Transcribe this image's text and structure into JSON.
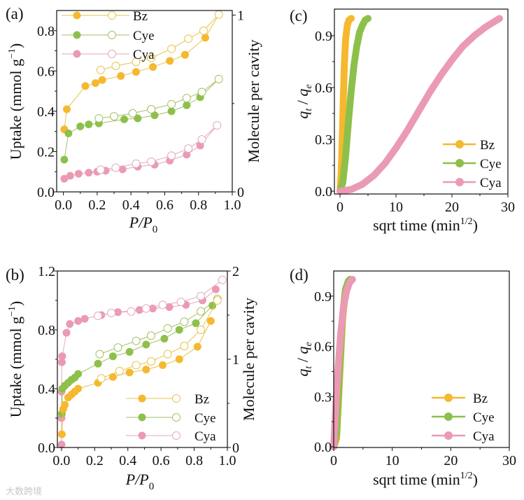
{
  "colors": {
    "Bz": "#F5B82E",
    "Cye": "#8DC04B",
    "Cya": "#EB9AB4",
    "Bz_line": "#E8C44A",
    "Cye_line": "#A5BF63",
    "Cya_line": "#E3A9BE"
  },
  "watermark": "大数跨境",
  "chart_data": [
    {
      "panel": "(a)",
      "type": "scatter-line",
      "xlabel": {
        "main": "P/P",
        "sub": "0"
      },
      "ylabel": {
        "main": "Uptake (mmol g",
        "sup": "−1",
        "end": ")"
      },
      "ylabel_right": "Molecule per cavity",
      "xlim": [
        -0.04,
        1.0
      ],
      "ylim": [
        0,
        0.9
      ],
      "xticks": [
        "0.0",
        "0.2",
        "0.4",
        "0.6",
        "0.8",
        "1.0"
      ],
      "yticks": [
        "0.0",
        "0.2",
        "0.4",
        "0.6",
        "0.8"
      ],
      "yticks_right": [
        "0",
        "1"
      ],
      "right_axis_mmol_per_molecule": 0.877,
      "legend": [
        "Bz",
        "Cye",
        "Cya"
      ],
      "legend_position": "top-left",
      "series": [
        {
          "name": "Bz",
          "adsorption": [
            [
              0.005,
              0.31
            ],
            [
              0.02,
              0.41
            ],
            [
              0.13,
              0.525
            ],
            [
              0.19,
              0.54
            ],
            [
              0.23,
              0.555
            ],
            [
              0.34,
              0.575
            ],
            [
              0.43,
              0.595
            ],
            [
              0.53,
              0.62
            ],
            [
              0.63,
              0.65
            ],
            [
              0.72,
              0.68
            ],
            [
              0.84,
              0.765
            ],
            [
              0.92,
              0.88
            ]
          ],
          "desorption": [
            [
              0.92,
              0.88
            ],
            [
              0.83,
              0.8
            ],
            [
              0.74,
              0.76
            ],
            [
              0.64,
              0.71
            ],
            [
              0.52,
              0.665
            ],
            [
              0.43,
              0.645
            ],
            [
              0.31,
              0.625
            ],
            [
              0.22,
              0.605
            ]
          ]
        },
        {
          "name": "Cye",
          "adsorption": [
            [
              0.005,
              0.16
            ],
            [
              0.03,
              0.29
            ],
            [
              0.1,
              0.325
            ],
            [
              0.15,
              0.335
            ],
            [
              0.21,
              0.34
            ],
            [
              0.36,
              0.36
            ],
            [
              0.44,
              0.365
            ],
            [
              0.54,
              0.38
            ],
            [
              0.64,
              0.4
            ],
            [
              0.73,
              0.43
            ],
            [
              0.81,
              0.47
            ],
            [
              0.92,
              0.56
            ]
          ],
          "desorption": [
            [
              0.92,
              0.56
            ],
            [
              0.82,
              0.495
            ],
            [
              0.73,
              0.465
            ],
            [
              0.64,
              0.435
            ],
            [
              0.52,
              0.41
            ],
            [
              0.41,
              0.39
            ],
            [
              0.3,
              0.375
            ],
            [
              0.21,
              0.365
            ]
          ]
        },
        {
          "name": "Cya",
          "adsorption": [
            [
              0.005,
              0.065
            ],
            [
              0.04,
              0.08
            ],
            [
              0.09,
              0.09
            ],
            [
              0.15,
              0.095
            ],
            [
              0.2,
              0.1
            ],
            [
              0.25,
              0.105
            ],
            [
              0.35,
              0.112
            ],
            [
              0.44,
              0.125
            ],
            [
              0.54,
              0.135
            ],
            [
              0.63,
              0.155
            ],
            [
              0.73,
              0.185
            ],
            [
              0.81,
              0.23
            ],
            [
              0.91,
              0.33
            ]
          ],
          "desorption": [
            [
              0.91,
              0.33
            ],
            [
              0.82,
              0.26
            ],
            [
              0.74,
              0.215
            ],
            [
              0.64,
              0.18
            ],
            [
              0.52,
              0.15
            ],
            [
              0.43,
              0.14
            ],
            [
              0.31,
              0.12
            ],
            [
              0.22,
              0.11
            ]
          ]
        }
      ]
    },
    {
      "panel": "(b)",
      "type": "scatter-line",
      "xlabel": {
        "main": "P/P",
        "sub": "0"
      },
      "ylabel": {
        "main": "Uptake (mmol g",
        "sup": "−1",
        "end": ")"
      },
      "ylabel_right": "Molecule per cavity",
      "xlim": [
        -0.025,
        1.0
      ],
      "ylim": [
        0,
        1.2
      ],
      "xticks": [
        "0.0",
        "0.2",
        "0.4",
        "0.6",
        "0.8",
        "1.0"
      ],
      "yticks": [
        "0.0",
        "0.4",
        "0.8",
        "1.2"
      ],
      "yticks_right": [
        "0",
        "1",
        "2"
      ],
      "right_axis_mmol_per_molecule": 0.6,
      "legend": [
        "Bz",
        "Cye",
        "Cya"
      ],
      "legend_position": "bottom-right",
      "series": [
        {
          "name": "Cya",
          "adsorption": [
            [
              0,
              0.02
            ],
            [
              0,
              0.2
            ],
            [
              0,
              0.38
            ],
            [
              0.002,
              0.58
            ],
            [
              0.004,
              0.62
            ],
            [
              0.03,
              0.78
            ],
            [
              0.05,
              0.84
            ],
            [
              0.1,
              0.86
            ],
            [
              0.14,
              0.875
            ],
            [
              0.24,
              0.9
            ],
            [
              0.34,
              0.92
            ],
            [
              0.47,
              0.935
            ],
            [
              0.55,
              0.945
            ],
            [
              0.65,
              0.955
            ],
            [
              0.75,
              0.97
            ],
            [
              0.85,
              1.0
            ],
            [
              0.93,
              1.075
            ]
          ],
          "desorption": [
            [
              0.97,
              1.14
            ],
            [
              0.84,
              1.03
            ],
            [
              0.72,
              0.99
            ],
            [
              0.61,
              0.97
            ],
            [
              0.51,
              0.945
            ],
            [
              0.42,
              0.925
            ],
            [
              0.3,
              0.915
            ],
            [
              0.22,
              0.895
            ]
          ]
        },
        {
          "name": "Cye",
          "adsorption": [
            [
              0.002,
              0.23
            ],
            [
              0.005,
              0.4
            ],
            [
              0.02,
              0.42
            ],
            [
              0.04,
              0.44
            ],
            [
              0.06,
              0.46
            ],
            [
              0.08,
              0.475
            ],
            [
              0.1,
              0.5
            ],
            [
              0.22,
              0.57
            ],
            [
              0.31,
              0.62
            ],
            [
              0.41,
              0.65
            ],
            [
              0.51,
              0.7
            ],
            [
              0.62,
              0.74
            ],
            [
              0.71,
              0.8
            ],
            [
              0.81,
              0.845
            ],
            [
              0.91,
              0.965
            ]
          ],
          "desorption": [
            [
              0.94,
              1.01
            ],
            [
              0.84,
              0.925
            ],
            [
              0.74,
              0.855
            ],
            [
              0.64,
              0.81
            ],
            [
              0.54,
              0.76
            ],
            [
              0.45,
              0.725
            ],
            [
              0.34,
              0.68
            ],
            [
              0.23,
              0.635
            ]
          ]
        },
        {
          "name": "Bz",
          "adsorption": [
            [
              0.002,
              0.09
            ],
            [
              0.01,
              0.26
            ],
            [
              0.02,
              0.29
            ],
            [
              0.04,
              0.34
            ],
            [
              0.06,
              0.36
            ],
            [
              0.08,
              0.38
            ],
            [
              0.1,
              0.4
            ],
            [
              0.22,
              0.44
            ],
            [
              0.31,
              0.48
            ],
            [
              0.41,
              0.51
            ],
            [
              0.51,
              0.53
            ],
            [
              0.61,
              0.56
            ],
            [
              0.71,
              0.6
            ],
            [
              0.82,
              0.685
            ],
            [
              0.9,
              0.86
            ]
          ],
          "desorption": [
            [
              0.94,
              1.0
            ],
            [
              0.84,
              0.8
            ],
            [
              0.74,
              0.69
            ],
            [
              0.64,
              0.635
            ],
            [
              0.54,
              0.585
            ],
            [
              0.45,
              0.56
            ],
            [
              0.35,
              0.52
            ],
            [
              0.24,
              0.47
            ]
          ]
        }
      ]
    },
    {
      "panel": "(c)",
      "type": "line",
      "xlabel": {
        "main": "sqrt time (min",
        "sup": "1/2",
        "end": ")"
      },
      "ylabel": {
        "q": "q",
        "t": "t",
        "sep": " / ",
        "q2": "q",
        "e": "e"
      },
      "xlim": [
        -1,
        30
      ],
      "ylim": [
        -0.016,
        1.054
      ],
      "xticks": [
        "0",
        "10",
        "20",
        "30"
      ],
      "yticks": [
        "0.0",
        "0.3",
        "0.6",
        "0.9"
      ],
      "legend": [
        "Bz",
        "Cye",
        "Cya"
      ],
      "legend_position": "bottom-right",
      "series": [
        {
          "name": "Bz",
          "points": [
            [
              0,
              0
            ],
            [
              0.2,
              0.1
            ],
            [
              0.4,
              0.3
            ],
            [
              0.6,
              0.55
            ],
            [
              0.8,
              0.75
            ],
            [
              1.0,
              0.88
            ],
            [
              1.3,
              0.96
            ],
            [
              1.6,
              0.99
            ],
            [
              2.0,
              1.0
            ]
          ]
        },
        {
          "name": "Cye",
          "points": [
            [
              0,
              0
            ],
            [
              0.5,
              0.05
            ],
            [
              1,
              0.2
            ],
            [
              1.5,
              0.4
            ],
            [
              2,
              0.58
            ],
            [
              2.5,
              0.73
            ],
            [
              3,
              0.84
            ],
            [
              3.5,
              0.92
            ],
            [
              4,
              0.96
            ],
            [
              4.5,
              0.99
            ],
            [
              5,
              1.0
            ]
          ]
        },
        {
          "name": "Cya",
          "points": [
            [
              0,
              0
            ],
            [
              2,
              0.01
            ],
            [
              4,
              0.04
            ],
            [
              6,
              0.09
            ],
            [
              8,
              0.16
            ],
            [
              10,
              0.25
            ],
            [
              12,
              0.35
            ],
            [
              14,
              0.46
            ],
            [
              16,
              0.57
            ],
            [
              18,
              0.67
            ],
            [
              20,
              0.76
            ],
            [
              22,
              0.84
            ],
            [
              24,
              0.9
            ],
            [
              26,
              0.95
            ],
            [
              28.5,
              1.0
            ]
          ]
        }
      ]
    },
    {
      "panel": "(d)",
      "type": "line",
      "xlabel": {
        "main": "sqrt time (min",
        "sup": "1/2",
        "end": ")"
      },
      "ylabel": {
        "q": "q",
        "t": "t",
        "sep": " / ",
        "q2": "q",
        "e": "e"
      },
      "xlim": [
        0,
        30
      ],
      "ylim": [
        -0.004,
        1.05
      ],
      "xticks": [
        "0",
        "10",
        "20",
        "30"
      ],
      "yticks": [
        "0.0",
        "0.3",
        "0.6",
        "0.9"
      ],
      "legend": [
        "Bz",
        "Cye",
        "Cya"
      ],
      "legend_position": "bottom-right",
      "series": [
        {
          "name": "Bz",
          "points": [
            [
              0,
              0
            ],
            [
              0.5,
              0.05
            ],
            [
              1,
              0.4
            ],
            [
              1.5,
              0.75
            ],
            [
              2,
              0.93
            ],
            [
              2.5,
              0.99
            ],
            [
              2.8,
              1.0
            ]
          ]
        },
        {
          "name": "Cye",
          "points": [
            [
              0,
              0
            ],
            [
              0.5,
              0.08
            ],
            [
              1,
              0.45
            ],
            [
              1.5,
              0.78
            ],
            [
              2,
              0.94
            ],
            [
              2.5,
              0.99
            ],
            [
              2.8,
              1.0
            ]
          ]
        },
        {
          "name": "Cya",
          "points": [
            [
              0,
              0
            ],
            [
              0.3,
              0.2
            ],
            [
              0.7,
              0.45
            ],
            [
              1.2,
              0.68
            ],
            [
              1.7,
              0.84
            ],
            [
              2.2,
              0.93
            ],
            [
              2.7,
              0.98
            ],
            [
              3.2,
              1.0
            ]
          ]
        }
      ]
    }
  ]
}
